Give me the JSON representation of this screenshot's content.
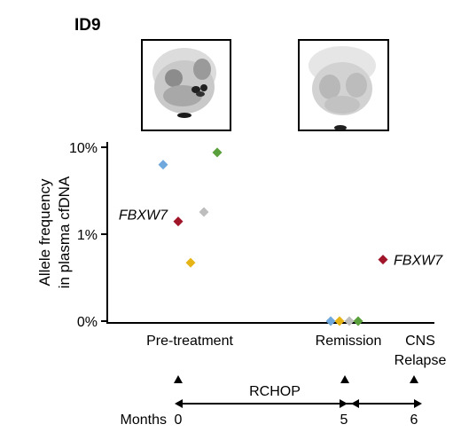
{
  "panel_label": "ID9",
  "scan_images": [
    {
      "name": "pet-scan-pre-treatment"
    },
    {
      "name": "pet-scan-remission"
    }
  ],
  "chart_data": {
    "type": "scatter",
    "title": "ID9",
    "ylabel_lines": [
      "Allele frequency",
      "in plasma cfDNA"
    ],
    "y_scale": "log",
    "y_ticks": [
      "10%",
      "1%",
      "0%"
    ],
    "categories": [
      "Pre-treatment",
      "Remission",
      "CNS Relapse"
    ],
    "category_label_lines": [
      [
        "Pre-treatment"
      ],
      [
        "Remission"
      ],
      [
        "CNS",
        "Relapse"
      ]
    ],
    "points": [
      {
        "category": "Pre-treatment",
        "color": "#6fa8dc",
        "y_percent": 6.3
      },
      {
        "category": "Pre-treatment",
        "color": "#a01528",
        "y_percent": 1.4,
        "label": "FBXW7"
      },
      {
        "category": "Pre-treatment",
        "color": "#e7b416",
        "y_percent": 0.47
      },
      {
        "category": "Pre-treatment",
        "color": "#bdbdbd",
        "y_percent": 1.8
      },
      {
        "category": "Pre-treatment",
        "color": "#5aa03c",
        "y_percent": 8.7
      },
      {
        "category": "Remission",
        "color": "#6fa8dc",
        "y_percent": 0
      },
      {
        "category": "Remission",
        "color": "#e7b416",
        "y_percent": 0
      },
      {
        "category": "Remission",
        "color": "#bdbdbd",
        "y_percent": 0
      },
      {
        "category": "Remission",
        "color": "#5aa03c",
        "y_percent": 0
      },
      {
        "category": "CNS Relapse",
        "color": "#a01528",
        "y_percent": 0.51,
        "label": "FBXW7"
      }
    ],
    "timeline": {
      "months_label": "Months",
      "treatment_label": "RCHOP",
      "month_values": [
        "0",
        "5",
        "6"
      ]
    }
  }
}
